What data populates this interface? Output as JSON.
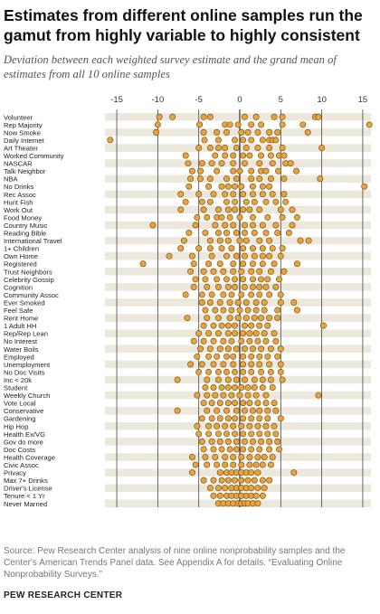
{
  "header": {
    "title": "Estimates from different online samples run the gamut from highly variable to highly consistent",
    "subtitle": "Deviation between each weighted survey estimate and the grand mean of estimates from all 10 online samples"
  },
  "footer": {
    "source": "Source: Pew Research Center analysis of nine online nonprobability samples and the Center's American Trends Panel data. See Appendix A for details. “Evaluating Online Nonprobability Surveys.”",
    "brand": "PEW RESEARCH CENTER"
  },
  "colors": {
    "dot_fill": "#e8a33d",
    "dot_stroke": "#6b4a14",
    "band": "#ece9dc",
    "zero_line": "#333333",
    "grid": "#444444"
  },
  "chart_data": {
    "type": "scatter",
    "xlim": [
      -16,
      16
    ],
    "x_ticks": [
      -15,
      -10,
      -5,
      0,
      5,
      10,
      15
    ],
    "grid": true,
    "categories": [
      "Volunteer",
      "Rep Majority",
      "Now Smoke",
      "Daily Internet",
      "Art Theater",
      "Worked Community",
      "NASCAR",
      "Talk Neighbor",
      "NBA",
      "No Drinks",
      "Rec Assoc",
      "Hunt Fish",
      "Work Out",
      "Food Money",
      "Country Music",
      "Reading Bible",
      "International Travel",
      "1+ Children",
      "Own Home",
      "Registered",
      "Trust Neighbors",
      "Celebrity Gossip",
      "Cognition",
      "Community Assoc",
      "Ever Smoked",
      "Feel Safe",
      "Rent Home",
      "1 Adult HH",
      "Rep/Rep Lean",
      "No Interest",
      "Water Boils",
      "Employed",
      "Unemployment",
      "No Doc Visits",
      "Inc < 20k",
      "Student",
      "Weekly Church",
      "Vote Local",
      "Conservative",
      "Gardening",
      "Hip Hop",
      "Health Ex/VG",
      "Gov do more",
      "Doc Costs",
      "Health Coverage",
      "Civic Assoc",
      "Privacy",
      "Max 7+ Drinks",
      "Driver's License",
      "Tenure < 1 Yr",
      "Never Married"
    ],
    "values": [
      [
        -9.8,
        -8.2,
        -4.4,
        -3.6,
        0.6,
        2.0,
        4.2,
        5.2,
        9.2,
        9.6
      ],
      [
        -10.0,
        -4.9,
        -1.8,
        -1.2,
        -0.2,
        1.4,
        2.6,
        5.2,
        7.7,
        15.8
      ],
      [
        -10.2,
        -4.4,
        -2.8,
        -1.6,
        0.2,
        1.0,
        2.2,
        3.6,
        4.6,
        8.3
      ],
      [
        -15.8,
        -4.3,
        -2.6,
        -0.6,
        0.4,
        1.4,
        2.8,
        3.6,
        4.0,
        4.4
      ],
      [
        -5.0,
        -3.6,
        -2.6,
        -1.8,
        -0.4,
        0.8,
        2.2,
        3.6,
        5.2,
        10.0
      ],
      [
        -6.6,
        -3.0,
        -1.8,
        -0.8,
        0.4,
        1.2,
        2.6,
        3.8,
        4.8,
        5.4
      ],
      [
        -6.3,
        -4.6,
        -3.4,
        -2.2,
        -0.8,
        0.6,
        2.4,
        4.0,
        5.6,
        6.2
      ],
      [
        -5.8,
        -4.8,
        -2.8,
        -0.8,
        0.0,
        1.4,
        2.6,
        3.2,
        4.7,
        6.9
      ],
      [
        -6.0,
        -4.8,
        -3.6,
        -1.6,
        -0.4,
        1.4,
        2.4,
        3.8,
        5.4,
        9.8
      ],
      [
        -6.2,
        -3.8,
        -2.2,
        -1.4,
        -0.6,
        0.2,
        1.6,
        2.8,
        3.6,
        15.2
      ],
      [
        -7.2,
        -5.0,
        -3.2,
        -1.8,
        -0.8,
        0.4,
        1.6,
        2.8,
        4.0,
        5.4
      ],
      [
        -6.6,
        -4.6,
        -3.6,
        -1.6,
        -0.6,
        0.8,
        1.8,
        3.2,
        4.4,
        5.6
      ],
      [
        -7.2,
        -4.4,
        -2.6,
        -1.4,
        -0.6,
        0.4,
        1.2,
        2.4,
        5.0,
        6.4
      ],
      [
        -5.2,
        -4.0,
        -2.8,
        -2.2,
        -1.2,
        0.0,
        1.6,
        3.4,
        5.2,
        7.0
      ],
      [
        -10.6,
        -5.4,
        -3.0,
        -1.8,
        -0.8,
        0.6,
        1.6,
        2.8,
        4.4,
        6.4
      ],
      [
        -6.2,
        -4.2,
        -2.6,
        -1.6,
        -0.4,
        0.6,
        1.8,
        3.2,
        4.6,
        6.0
      ],
      [
        -6.8,
        -3.6,
        -2.4,
        -1.4,
        0.0,
        0.8,
        2.4,
        3.6,
        7.4,
        8.4
      ],
      [
        -7.2,
        -5.0,
        -3.6,
        -2.2,
        -1.0,
        0.4,
        1.6,
        2.8,
        4.0,
        5.2
      ],
      [
        -8.6,
        -5.8,
        -3.4,
        -1.6,
        -0.4,
        0.6,
        1.8,
        2.8,
        3.6,
        5.0
      ],
      [
        -11.8,
        -5.6,
        -3.8,
        -2.4,
        -0.8,
        0.4,
        1.6,
        2.8,
        4.2,
        7.0
      ],
      [
        -6.0,
        -4.4,
        -3.2,
        -2.0,
        -0.8,
        0.2,
        1.4,
        2.4,
        3.8,
        5.4
      ],
      [
        -5.4,
        -4.2,
        -2.8,
        -1.6,
        -0.6,
        0.4,
        1.6,
        2.6,
        3.4,
        4.8
      ],
      [
        -5.6,
        -4.0,
        -2.6,
        -1.4,
        -0.6,
        0.6,
        1.6,
        2.4,
        3.2,
        4.4
      ],
      [
        -6.6,
        -4.6,
        -3.4,
        -2.0,
        -1.0,
        0.2,
        1.4,
        2.4,
        3.6,
        5.0
      ],
      [
        -4.6,
        -3.6,
        -2.4,
        -1.2,
        -0.2,
        0.8,
        2.0,
        3.0,
        5.0,
        6.6
      ],
      [
        -4.2,
        -3.0,
        -2.0,
        -1.0,
        0.0,
        1.0,
        2.0,
        3.0,
        4.6,
        7.0
      ],
      [
        -6.4,
        -4.0,
        -2.6,
        -1.2,
        -0.2,
        0.8,
        1.8,
        2.6,
        3.6,
        4.6
      ],
      [
        -4.4,
        -3.2,
        -2.2,
        -1.4,
        -0.6,
        0.6,
        1.4,
        2.4,
        3.4,
        10.2
      ],
      [
        -5.0,
        -3.8,
        -2.6,
        -1.4,
        -0.6,
        0.4,
        1.2,
        2.0,
        3.0,
        4.2
      ],
      [
        -5.6,
        -4.4,
        -3.2,
        -2.0,
        -1.0,
        0.2,
        1.2,
        2.2,
        3.2,
        4.4
      ],
      [
        -4.8,
        -3.6,
        -2.4,
        -1.4,
        -0.4,
        0.6,
        1.6,
        2.6,
        3.8,
        5.0
      ],
      [
        -5.2,
        -3.8,
        -2.8,
        -1.6,
        -0.8,
        0.4,
        1.4,
        2.4,
        3.4,
        4.6
      ],
      [
        -6.0,
        -4.6,
        -3.2,
        -2.0,
        -0.8,
        0.4,
        1.4,
        2.4,
        3.6,
        5.0
      ],
      [
        -5.0,
        -3.8,
        -2.6,
        -1.6,
        -0.6,
        0.4,
        1.4,
        2.6,
        3.8,
        5.0
      ],
      [
        -7.6,
        -4.0,
        -2.6,
        -1.4,
        -0.4,
        0.6,
        1.8,
        2.8,
        3.8,
        5.2
      ],
      [
        -4.2,
        -3.2,
        -2.2,
        -1.4,
        -0.6,
        0.2,
        1.0,
        1.8,
        2.8,
        4.0
      ],
      [
        -5.2,
        -4.0,
        -3.0,
        -2.0,
        -1.0,
        0.0,
        1.0,
        2.0,
        3.2,
        9.6
      ],
      [
        -4.4,
        -3.4,
        -2.4,
        -1.4,
        -0.6,
        0.4,
        1.2,
        2.2,
        3.2,
        4.2
      ],
      [
        -7.6,
        -4.0,
        -2.8,
        -1.6,
        -0.4,
        0.6,
        1.6,
        2.4,
        3.4,
        4.4
      ],
      [
        -4.6,
        -3.4,
        -2.4,
        -1.4,
        -0.6,
        0.4,
        1.4,
        2.4,
        3.4,
        5.0
      ],
      [
        -5.2,
        -3.8,
        -2.8,
        -1.8,
        -0.8,
        0.2,
        1.2,
        2.2,
        3.2,
        4.2
      ],
      [
        -5.0,
        -3.8,
        -2.6,
        -1.6,
        -0.6,
        0.4,
        1.4,
        2.4,
        3.4,
        4.4
      ],
      [
        -4.6,
        -3.4,
        -2.4,
        -1.4,
        -0.4,
        0.6,
        1.6,
        2.6,
        3.6,
        4.6
      ],
      [
        -4.4,
        -3.2,
        -2.2,
        -1.2,
        -0.4,
        0.4,
        1.4,
        2.4,
        3.6,
        4.8
      ],
      [
        -5.8,
        -4.2,
        -3.0,
        -1.8,
        -0.8,
        0.2,
        1.2,
        2.2,
        3.0,
        4.0
      ],
      [
        -5.4,
        -4.0,
        -2.8,
        -1.8,
        -0.8,
        0.2,
        1.2,
        2.0,
        2.8,
        3.8
      ],
      [
        -5.8,
        -2.4,
        -1.6,
        -1.0,
        -0.4,
        0.2,
        0.8,
        1.4,
        2.2,
        6.6
      ],
      [
        -4.4,
        -3.2,
        -2.2,
        -1.4,
        -0.6,
        0.2,
        1.0,
        1.8,
        2.8,
        3.6
      ],
      [
        -3.6,
        -2.6,
        -1.8,
        -1.0,
        -0.4,
        0.2,
        0.8,
        1.4,
        2.2,
        3.0
      ],
      [
        -3.2,
        -2.4,
        -1.6,
        -1.0,
        -0.4,
        0.2,
        0.8,
        1.4,
        2.0,
        2.8
      ],
      [
        -2.6,
        -2.0,
        -1.4,
        -0.8,
        -0.2,
        0.2,
        0.6,
        1.0,
        1.6,
        2.2
      ]
    ]
  }
}
